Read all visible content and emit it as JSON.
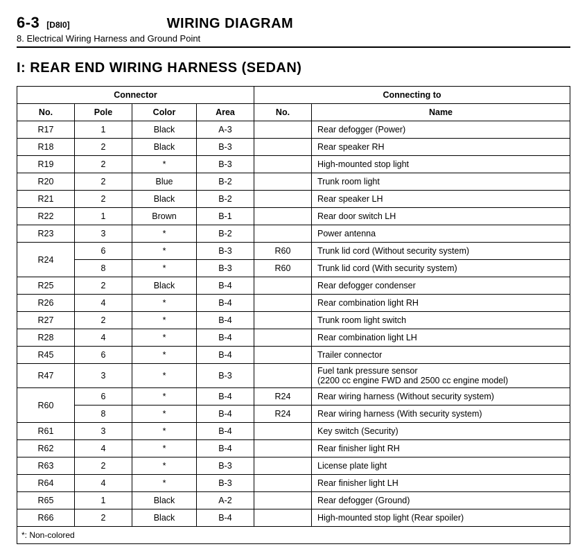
{
  "header": {
    "page_num": "6-3",
    "page_code": "[D8I0]",
    "title": "WIRING DIAGRAM",
    "subtitle": "8. Electrical Wiring Harness and Ground Point"
  },
  "section": {
    "title": "I: REAR END WIRING HARNESS (SEDAN)"
  },
  "table": {
    "group_headers": {
      "connector": "Connector",
      "connecting_to": "Connecting to"
    },
    "col_headers": {
      "no1": "No.",
      "pole": "Pole",
      "color": "Color",
      "area": "Area",
      "no2": "No.",
      "name": "Name"
    },
    "rows": [
      {
        "no1": "R17",
        "pole": "1",
        "color": "Black",
        "area": "A-3",
        "no2": "",
        "name": "Rear defogger (Power)",
        "rowspan": 1
      },
      {
        "no1": "R18",
        "pole": "2",
        "color": "Black",
        "area": "B-3",
        "no2": "",
        "name": "Rear speaker RH",
        "rowspan": 1
      },
      {
        "no1": "R19",
        "pole": "2",
        "color": "*",
        "area": "B-3",
        "no2": "",
        "name": "High-mounted stop light",
        "rowspan": 1
      },
      {
        "no1": "R20",
        "pole": "2",
        "color": "Blue",
        "area": "B-2",
        "no2": "",
        "name": "Trunk room light",
        "rowspan": 1
      },
      {
        "no1": "R21",
        "pole": "2",
        "color": "Black",
        "area": "B-2",
        "no2": "",
        "name": "Rear speaker LH",
        "rowspan": 1
      },
      {
        "no1": "R22",
        "pole": "1",
        "color": "Brown",
        "area": "B-1",
        "no2": "",
        "name": "Rear door switch LH",
        "rowspan": 1
      },
      {
        "no1": "R23",
        "pole": "3",
        "color": "*",
        "area": "B-2",
        "no2": "",
        "name": "Power antenna",
        "rowspan": 1
      },
      {
        "no1": "R24",
        "pole": "6",
        "color": "*",
        "area": "B-3",
        "no2": "R60",
        "name": "Trunk lid cord (Without security system)",
        "rowspan": 2
      },
      {
        "no1": "",
        "pole": "8",
        "color": "*",
        "area": "B-3",
        "no2": "R60",
        "name": "Trunk lid cord (With security system)",
        "rowspan": 0
      },
      {
        "no1": "R25",
        "pole": "2",
        "color": "Black",
        "area": "B-4",
        "no2": "",
        "name": "Rear defogger condenser",
        "rowspan": 1
      },
      {
        "no1": "R26",
        "pole": "4",
        "color": "*",
        "area": "B-4",
        "no2": "",
        "name": "Rear combination light RH",
        "rowspan": 1
      },
      {
        "no1": "R27",
        "pole": "2",
        "color": "*",
        "area": "B-4",
        "no2": "",
        "name": "Trunk room light switch",
        "rowspan": 1
      },
      {
        "no1": "R28",
        "pole": "4",
        "color": "*",
        "area": "B-4",
        "no2": "",
        "name": "Rear combination light LH",
        "rowspan": 1
      },
      {
        "no1": "R45",
        "pole": "6",
        "color": "*",
        "area": "B-4",
        "no2": "",
        "name": "Trailer connector",
        "rowspan": 1
      },
      {
        "no1": "R47",
        "pole": "3",
        "color": "*",
        "area": "B-3",
        "no2": "",
        "name": "Fuel tank pressure sensor\n(2200 cc engine FWD and 2500 cc engine model)",
        "rowspan": 1,
        "multiline": true
      },
      {
        "no1": "R60",
        "pole": "6",
        "color": "*",
        "area": "B-4",
        "no2": "R24",
        "name": "Rear wiring harness (Without security system)",
        "rowspan": 2
      },
      {
        "no1": "",
        "pole": "8",
        "color": "*",
        "area": "B-4",
        "no2": "R24",
        "name": "Rear wiring harness (With security system)",
        "rowspan": 0
      },
      {
        "no1": "R61",
        "pole": "3",
        "color": "*",
        "area": "B-4",
        "no2": "",
        "name": "Key switch (Security)",
        "rowspan": 1
      },
      {
        "no1": "R62",
        "pole": "4",
        "color": "*",
        "area": "B-4",
        "no2": "",
        "name": "Rear finisher light RH",
        "rowspan": 1
      },
      {
        "no1": "R63",
        "pole": "2",
        "color": "*",
        "area": "B-3",
        "no2": "",
        "name": "License plate light",
        "rowspan": 1
      },
      {
        "no1": "R64",
        "pole": "4",
        "color": "*",
        "area": "B-3",
        "no2": "",
        "name": "Rear finisher light LH",
        "rowspan": 1
      },
      {
        "no1": "R65",
        "pole": "1",
        "color": "Black",
        "area": "A-2",
        "no2": "",
        "name": "Rear defogger (Ground)",
        "rowspan": 1
      },
      {
        "no1": "R66",
        "pole": "2",
        "color": "Black",
        "area": "B-4",
        "no2": "",
        "name": "High-mounted stop light (Rear spoiler)",
        "rowspan": 1
      }
    ],
    "footnote": "*: Non-colored"
  }
}
